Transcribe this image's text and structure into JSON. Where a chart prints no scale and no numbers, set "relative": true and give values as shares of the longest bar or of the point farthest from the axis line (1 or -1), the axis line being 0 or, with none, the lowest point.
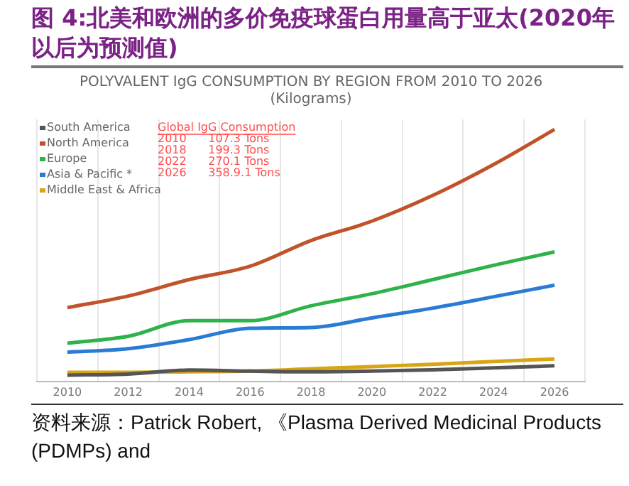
{
  "chart_data": {
    "type": "line",
    "title": "图 4:北美和欧洲的多价免疫球蛋白用量高于亚太(2020年以后为预测值)",
    "subtitle": "POLYVALENT IgG CONSUMPTION BY REGION FROM 2010 TO 2026\n(Kilograms)",
    "categories": [
      "2010",
      "2012",
      "2014",
      "2016",
      "2018",
      "2020",
      "2022",
      "2024",
      "2026"
    ],
    "relative": true,
    "series": [
      {
        "name": "South America",
        "color": "#555555",
        "values": [
          0.025,
          0.029,
          0.045,
          0.041,
          0.038,
          0.041,
          0.046,
          0.054,
          0.062
        ]
      },
      {
        "name": "North America",
        "color": "#c0532a",
        "values": [
          0.293,
          0.339,
          0.404,
          0.457,
          0.559,
          0.636,
          0.738,
          0.861,
          1.0
        ]
      },
      {
        "name": "Europe",
        "color": "#2db34a",
        "values": [
          0.152,
          0.179,
          0.241,
          0.241,
          0.3,
          0.348,
          0.404,
          0.461,
          0.514
        ]
      },
      {
        "name": "Asia & Pacific *",
        "color": "#2a7bd4",
        "values": [
          0.116,
          0.13,
          0.166,
          0.211,
          0.214,
          0.252,
          0.291,
          0.336,
          0.382
        ]
      },
      {
        "name": "Middle East & Africa",
        "color": "#d9a514",
        "values": [
          0.036,
          0.036,
          0.038,
          0.041,
          0.05,
          0.059,
          0.068,
          0.079,
          0.089
        ]
      }
    ],
    "annotations": [
      "Global IgG Consumption",
      "2010      107.3 Tons",
      "2018      199.3 Tons",
      "2022      270.1 Tons",
      "2026      358.9.1 Tons",
      "资料来源：Patrick Robert, 《Plasma Derived Medicinal Products (PDMPs) and"
    ],
    "legend": "top left",
    "grid": "x",
    "marker": "none",
    "line_style": "solid"
  }
}
